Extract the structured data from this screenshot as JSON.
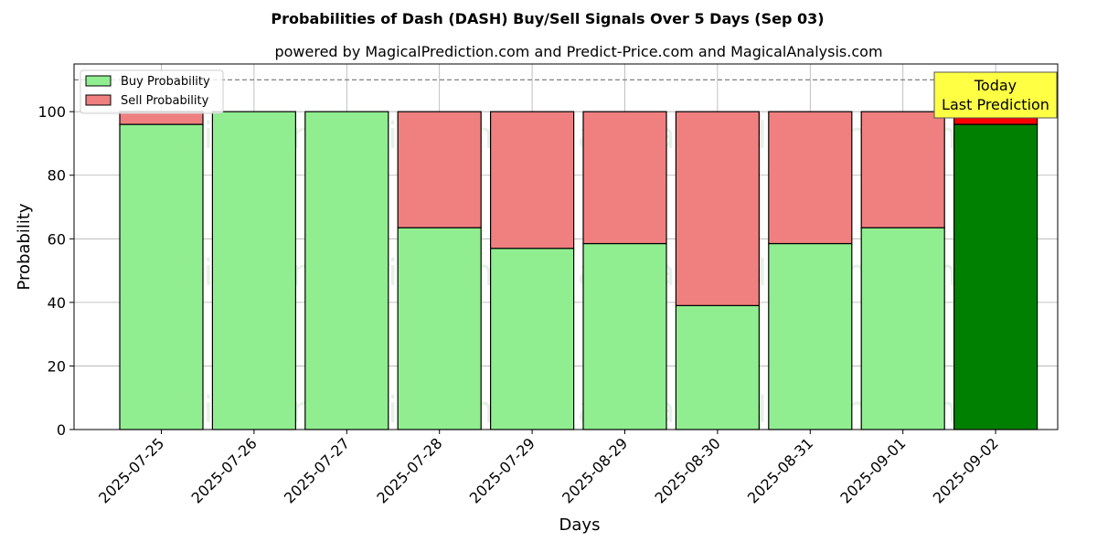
{
  "chart_data": {
    "type": "bar",
    "stacked": true,
    "title": "Probabilities of Dash (DASH) Buy/Sell Signals Over 5 Days (Sep 03)",
    "subtitle": "powered by MagicalPrediction.com and Predict-Price.com and MagicalAnalysis.com",
    "xlabel": "Days",
    "ylabel": "Probability",
    "ylim": [
      0,
      115
    ],
    "yticks": [
      0,
      20,
      40,
      60,
      80,
      100
    ],
    "grid": true,
    "reference_line": 110,
    "categories": [
      "2025-07-25",
      "2025-07-26",
      "2025-07-27",
      "2025-07-28",
      "2025-07-29",
      "2025-08-29",
      "2025-08-30",
      "2025-08-31",
      "2025-09-01",
      "2025-09-02"
    ],
    "series": [
      {
        "name": "Buy Probability",
        "color": "#90ee90",
        "values": [
          96,
          100,
          100,
          63.5,
          57,
          58.5,
          39,
          58.5,
          63.5,
          96
        ]
      },
      {
        "name": "Sell Probability",
        "color": "#f08080",
        "values": [
          4,
          0,
          0,
          36.5,
          43,
          41.5,
          61,
          41.5,
          36.5,
          4
        ]
      }
    ],
    "highlight": {
      "index": 9,
      "buy_color": "#008000",
      "sell_color": "#ff0000"
    },
    "legend": {
      "placement": "top-left"
    },
    "annotation": {
      "lines": [
        "Today",
        "Last Prediction"
      ],
      "background": "#ffff44"
    },
    "watermarks": [
      "MagicalAnalysis.com",
      "MagicalPrediction.com"
    ]
  }
}
